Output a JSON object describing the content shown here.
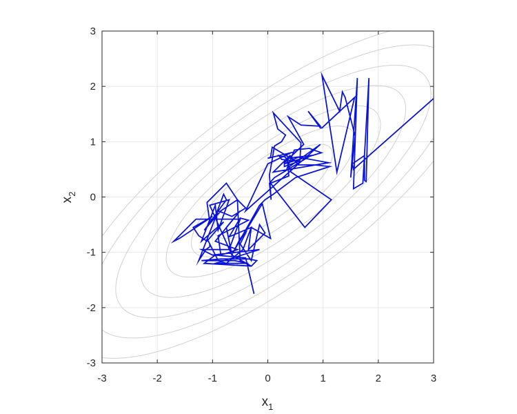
{
  "chart_data": {
    "type": "line",
    "title": "",
    "xlabel": {
      "base": "x",
      "sub": "1"
    },
    "ylabel": {
      "base": "x",
      "sub": "2"
    },
    "xlim": [
      -3,
      3
    ],
    "ylim": [
      -3,
      3
    ],
    "xticks": [
      -3,
      -2,
      -1,
      0,
      1,
      2,
      3
    ],
    "yticks": [
      -3,
      -2,
      -1,
      0,
      1,
      2,
      3
    ],
    "grid": true,
    "box": true,
    "contours": {
      "description": "elliptical contour levels of a correlated 2D Gaussian",
      "center": [
        0.1,
        0.1
      ],
      "semi_axes": [
        [
          4.55,
          1.6
        ],
        [
          4.0,
          1.4
        ],
        [
          3.45,
          1.2
        ],
        [
          2.9,
          1.0
        ],
        [
          2.35,
          0.8
        ],
        [
          1.8,
          0.6
        ],
        [
          1.3,
          0.43
        ]
      ],
      "angle_deg": 36.9,
      "color": "#d0d0d0"
    },
    "series": [
      {
        "color": "#0a14d8",
        "x": [
          3.0,
          1.55,
          1.53,
          1.75,
          1.75,
          1.78,
          1.83,
          1.72,
          1.55,
          1.62,
          1.5,
          1.58,
          1.4,
          1.35,
          1.3,
          0.98,
          1.25,
          1.57,
          0.98,
          0.95,
          0.73,
          0.95,
          0.6,
          0.37,
          0.65,
          0.3,
          0.3,
          0.58,
          0.6,
          0.1,
          0.18,
          0.32,
          0.25,
          0.12,
          0.08,
          0.03,
          0.06,
          0.03,
          0.12,
          0.78,
          0.35,
          0.38,
          0.05,
          0.67,
          1.15,
          0.42,
          0.32,
          0.2,
          0.25,
          0.5,
          0.08,
          0.05,
          0.0,
          0.42,
          0.0,
          -0.4,
          0.95,
          0.35,
          0.48,
          0.75,
          0.97,
          0.3,
          0.55,
          1.1,
          0.1,
          0.4,
          0.55,
          0.85,
          1.12,
          0.5,
          0.1,
          -0.05,
          -0.15,
          -0.6,
          -0.1,
          0.05,
          -0.3,
          -0.35,
          -0.05,
          -0.15,
          -0.3,
          -0.5,
          -0.4,
          -0.5,
          -0.65,
          -0.75,
          -0.5,
          -0.95,
          -0.55,
          -0.85,
          -0.9,
          -0.35,
          -0.5,
          -0.7,
          -0.3,
          -0.45,
          -0.75,
          -0.9,
          -1.1,
          -1.05,
          -1.05,
          -1.12,
          -1.25,
          -0.9,
          -0.65,
          -0.4,
          -0.55,
          -0.85,
          -1.15,
          -0.75,
          -0.8,
          -0.95,
          -1.05,
          -1.1,
          -0.75,
          -0.55,
          -0.5,
          -0.3,
          -0.65,
          -1.05,
          -0.7,
          -0.9,
          -0.95,
          -1.2,
          -0.8,
          -1.1,
          -1.25,
          -1.35,
          -1.0,
          -1.6,
          -1.7,
          -1.3,
          -0.5,
          -0.7,
          -1.2,
          -1.0,
          -0.15,
          -0.95,
          -0.35,
          -0.6,
          -1.1,
          -1.2,
          -0.85,
          -0.35,
          -0.2,
          -0.3,
          -1.15,
          -0.95,
          -0.4,
          -0.25
        ],
        "y": [
          1.78,
          0.5,
          0.6,
          0.75,
          0.3,
          0.28,
          2.15,
          0.25,
          0.15,
          2.15,
          0.35,
          1.1,
          1.8,
          1.9,
          1.55,
          2.2,
          0.45,
          1.8,
          1.25,
          1.25,
          1.55,
          1.28,
          1.3,
          1.45,
          0.95,
          0.62,
          0.55,
          0.65,
          0.98,
          1.52,
          1.23,
          1.12,
          1.0,
          0.92,
          0.68,
          0.4,
          -0.05,
          0.25,
          0.35,
          0.75,
          0.7,
          0.38,
          0.25,
          -0.55,
          -0.05,
          0.45,
          0.72,
          0.75,
          0.68,
          0.65,
          0.9,
          0.72,
          0.7,
          0.8,
          0.6,
          -0.25,
          0.95,
          0.52,
          0.85,
          0.88,
          0.8,
          0.6,
          0.72,
          0.62,
          0.45,
          0.75,
          0.58,
          0.58,
          0.55,
          0.35,
          0.05,
          -0.05,
          -0.15,
          -0.95,
          -0.12,
          -0.75,
          -0.55,
          -0.95,
          -0.65,
          -0.5,
          -1.15,
          -0.85,
          -0.65,
          -0.75,
          -1.05,
          -0.55,
          -0.25,
          -0.8,
          -0.95,
          -1.05,
          -0.7,
          -0.42,
          -0.38,
          -0.72,
          -0.55,
          -0.95,
          -1.2,
          -1.15,
          -0.75,
          -0.85,
          -0.9,
          -0.95,
          -1.15,
          -0.25,
          -0.35,
          -0.2,
          -0.05,
          -0.25,
          -0.6,
          -0.05,
          0.05,
          -0.35,
          -0.45,
          -0.1,
          0.25,
          -0.05,
          -1.15,
          -1.25,
          -1.05,
          -0.15,
          -0.05,
          -0.6,
          -0.15,
          -0.8,
          -0.45,
          -0.8,
          -0.7,
          -0.55,
          -0.35,
          -0.75,
          -0.8,
          -0.4,
          -0.4,
          -0.95,
          -0.95,
          -1.05,
          -0.95,
          -1.2,
          -1.2,
          -1.15,
          -1.15,
          -1.15,
          -1.12,
          -1.12,
          -1.15,
          -1.25,
          -1.2,
          -1.05,
          -1.1,
          -1.75
        ]
      }
    ]
  }
}
